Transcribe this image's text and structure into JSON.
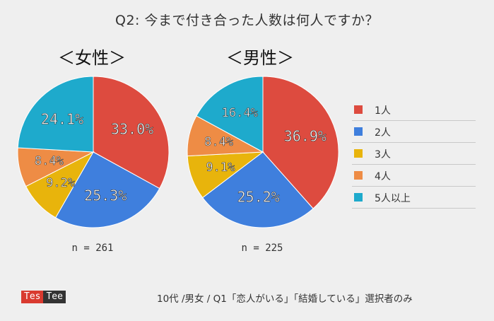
{
  "title": "Q2: 今まで付き合った人数は何人ですか？",
  "groups": {
    "female": {
      "label": "＜女性＞",
      "n_text": "n = 261"
    },
    "male": {
      "label": "＜男性＞",
      "n_text": "n = 225"
    }
  },
  "legend": [
    "1人",
    "2人",
    "3人",
    "4人",
    "5人以上"
  ],
  "colors": [
    "#dd4b3f",
    "#3f7fdd",
    "#e8b40c",
    "#ee8c45",
    "#1eaacc"
  ],
  "chart_data": [
    {
      "type": "pie",
      "title": "＜女性＞",
      "categories": [
        "1人",
        "2人",
        "3人",
        "4人",
        "5人以上"
      ],
      "values": [
        33.0,
        25.3,
        9.2,
        8.4,
        24.1
      ],
      "labels": [
        "33.0%",
        "25.3%",
        "9.2%",
        "8.4%",
        "24.1%"
      ],
      "n": 261,
      "legend": "right"
    },
    {
      "type": "pie",
      "title": "＜男性＞",
      "categories": [
        "1人",
        "2人",
        "3人",
        "4人",
        "5人以上"
      ],
      "values": [
        36.9,
        25.2,
        9.1,
        8.4,
        16.4
      ],
      "labels": [
        "36.9%",
        "25.2%",
        "9.1%",
        "8.4%",
        "16.4%"
      ],
      "n": 225,
      "legend": "right"
    }
  ],
  "logo": {
    "part1": "Tes",
    "part2": "Tee"
  },
  "footnote": "10代 /男女 / Q1「恋人がいる」「結婚している」選択者のみ"
}
